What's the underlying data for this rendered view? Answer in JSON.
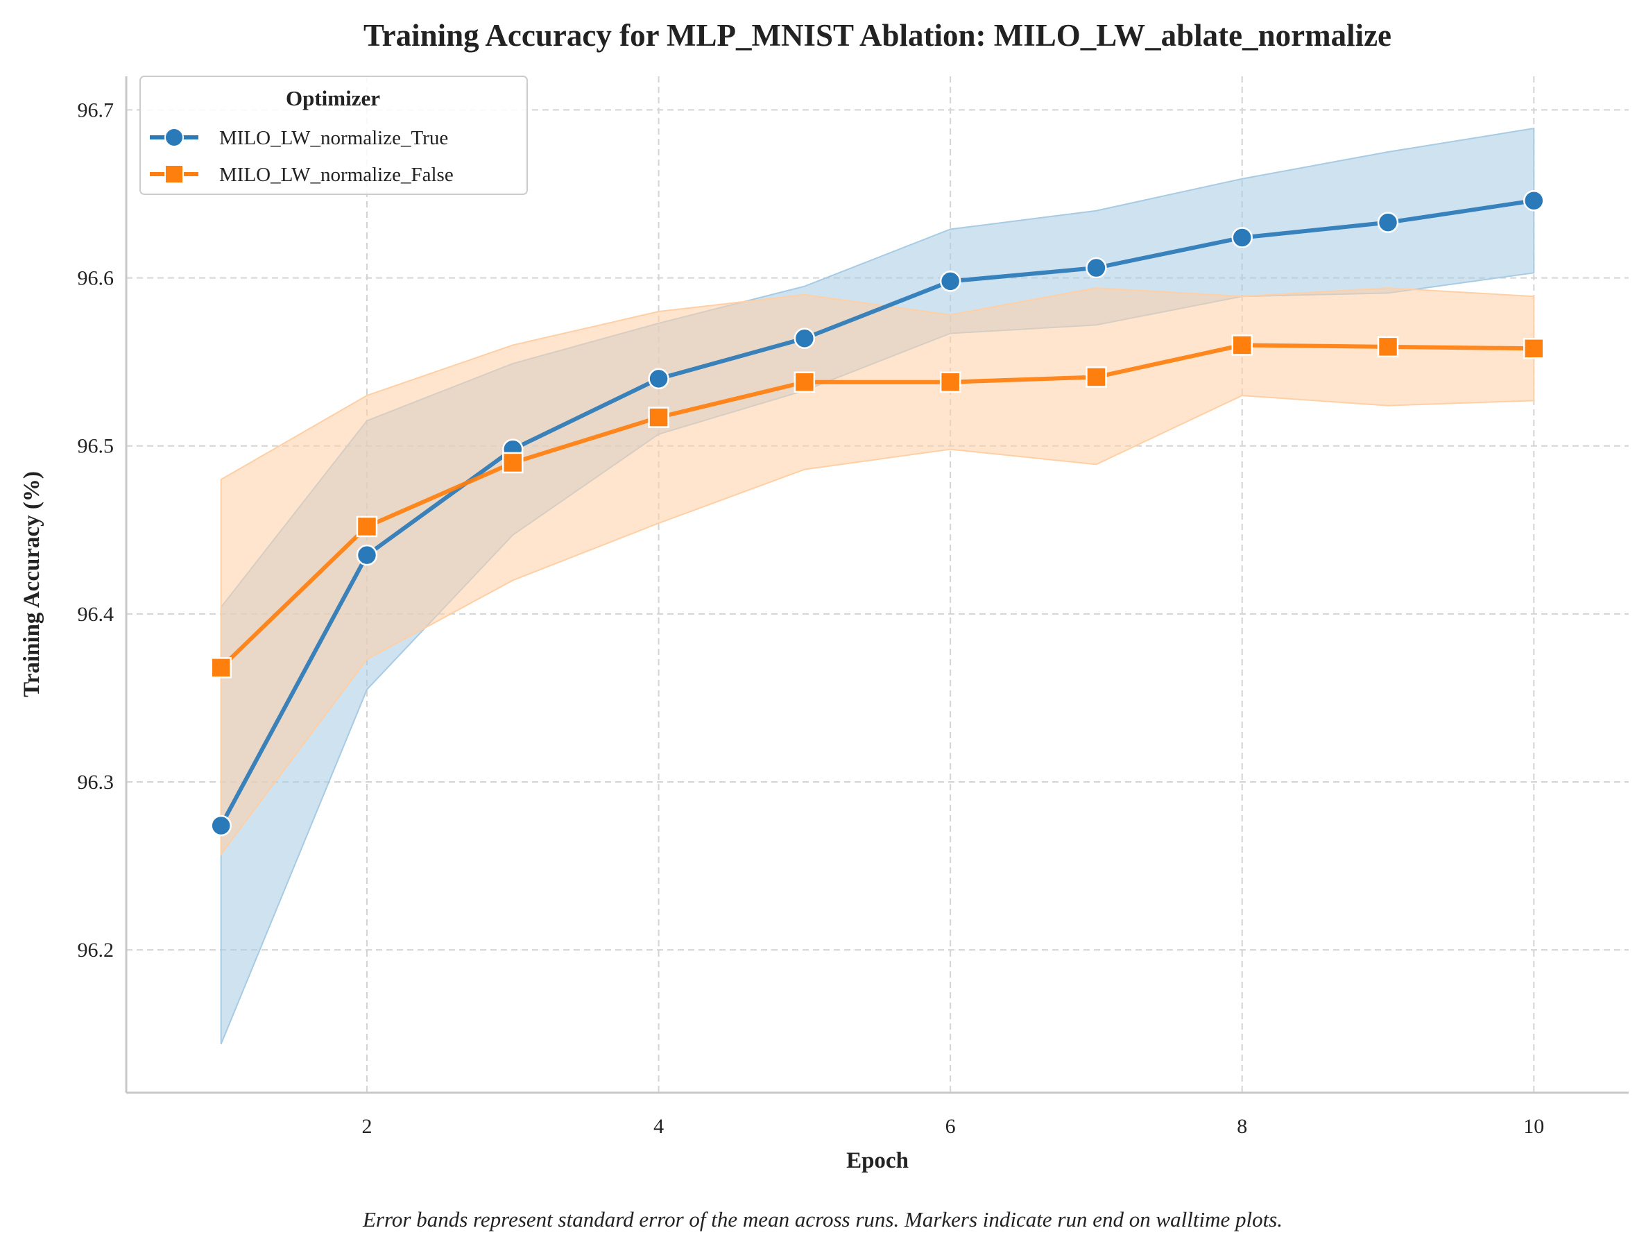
{
  "chart_data": {
    "type": "line",
    "title": "Training Accuracy for MLP_MNIST Ablation: MILO_LW_ablate_normalize",
    "xlabel": "Epoch",
    "ylabel": "Training Accuracy (%)",
    "caption": "Error bands represent standard error of the mean across runs. Markers indicate run end on walltime plots.",
    "legend_title": "Optimizer",
    "legend_position": "top-left",
    "grid": true,
    "xlim": [
      0.35,
      10.65
    ],
    "ylim": [
      96.115,
      96.72
    ],
    "x_ticks": [
      2,
      4,
      6,
      8,
      10
    ],
    "y_ticks": [
      96.2,
      96.3,
      96.4,
      96.5,
      96.6,
      96.7
    ],
    "x_tick_labels": [
      "2",
      "4",
      "6",
      "8",
      "10"
    ],
    "y_tick_labels": [
      "96.2",
      "96.3",
      "96.4",
      "96.5",
      "96.6",
      "96.7"
    ],
    "x": [
      1,
      2,
      3,
      4,
      5,
      6,
      7,
      8,
      9,
      10
    ],
    "series": [
      {
        "name": "MILO_LW_normalize_True",
        "color": "#2a7ab9",
        "band_color": "#a8cbe4",
        "marker": "circle",
        "values": [
          96.274,
          96.435,
          96.498,
          96.54,
          96.564,
          96.598,
          96.606,
          96.624,
          96.633,
          96.646
        ],
        "lower": [
          96.144,
          96.355,
          96.447,
          96.507,
          96.533,
          96.567,
          96.572,
          96.589,
          96.591,
          96.603
        ],
        "upper": [
          96.404,
          96.515,
          96.549,
          96.573,
          96.595,
          96.629,
          96.64,
          96.659,
          96.675,
          96.689
        ]
      },
      {
        "name": "MILO_LW_normalize_False",
        "color": "#ff7f0e",
        "band_color": "#ffcfa5",
        "marker": "square",
        "values": [
          96.368,
          96.452,
          96.49,
          96.517,
          96.538,
          96.538,
          96.541,
          96.56,
          96.559,
          96.558
        ],
        "lower": [
          96.257,
          96.373,
          96.42,
          96.454,
          96.486,
          96.498,
          96.489,
          96.53,
          96.524,
          96.527
        ],
        "upper": [
          96.48,
          96.53,
          96.56,
          96.58,
          96.59,
          96.578,
          96.594,
          96.589,
          96.594,
          96.589
        ]
      }
    ]
  }
}
